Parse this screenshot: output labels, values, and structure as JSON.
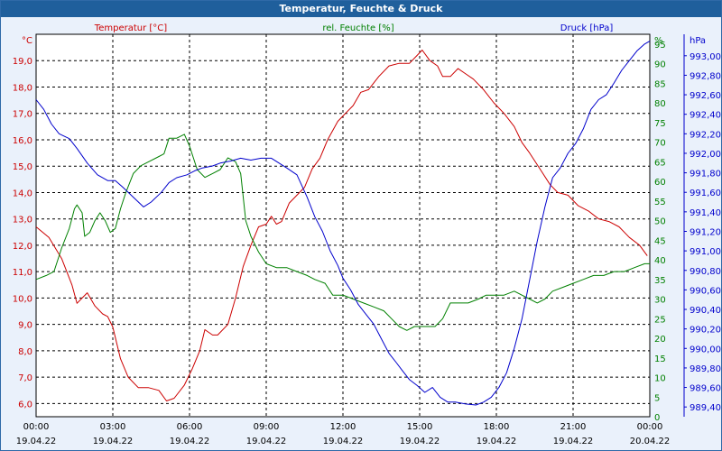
{
  "title": "Temperatur, Feuchte & Druck",
  "colors": {
    "temperature": "#cc0000",
    "humidity": "#008000",
    "pressure": "#0000cc",
    "axis_text": "#000000",
    "titlebar": "#1f5f9c",
    "plot_bg": "#ffffff"
  },
  "chart_data": {
    "type": "line",
    "title": "Temperatur, Feuchte & Druck",
    "grid": true,
    "x_ticks": [
      {
        "time": "00:00",
        "date": "19.04.22"
      },
      {
        "time": "03:00",
        "date": "19.04.22"
      },
      {
        "time": "06:00",
        "date": "19.04.22"
      },
      {
        "time": "09:00",
        "date": "19.04.22"
      },
      {
        "time": "12:00",
        "date": "19.04.22"
      },
      {
        "time": "15:00",
        "date": "19.04.22"
      },
      {
        "time": "18:00",
        "date": "19.04.22"
      },
      {
        "time": "21:00",
        "date": "19.04.22"
      },
      {
        "time": "00:00",
        "date": "20.04.22"
      }
    ],
    "x_range": [
      "19.04.22 00:00",
      "20.04.22 00:00"
    ],
    "axes": {
      "temperature": {
        "label": "Temperatur [°C]",
        "unit": "°C",
        "ylim": [
          5.5,
          20.0
        ],
        "ticks": [
          "6,0",
          "7,0",
          "8,0",
          "9,0",
          "10,0",
          "11,0",
          "12,0",
          "13,0",
          "14,0",
          "15,0",
          "16,0",
          "17,0",
          "18,0",
          "19,0"
        ],
        "tick_values": [
          6,
          7,
          8,
          9,
          10,
          11,
          12,
          13,
          14,
          15,
          16,
          17,
          18,
          19
        ]
      },
      "humidity": {
        "label": "rel. Feuchte [%]",
        "unit": "%",
        "ylim": [
          0,
          97.5
        ],
        "ticks": [
          "0",
          "5",
          "10",
          "15",
          "20",
          "25",
          "30",
          "35",
          "40",
          "45",
          "50",
          "55",
          "60",
          "65",
          "70",
          "75",
          "80",
          "85",
          "90",
          "95"
        ],
        "tick_values": [
          0,
          5,
          10,
          15,
          20,
          25,
          30,
          35,
          40,
          45,
          50,
          55,
          60,
          65,
          70,
          75,
          80,
          85,
          90,
          95
        ]
      },
      "pressure": {
        "label": "Druck [hPa]",
        "unit": "hPa",
        "ylim": [
          989.3,
          993.22
        ],
        "ticks": [
          "989,40",
          "989,60",
          "989,80",
          "990,00",
          "990,20",
          "990,40",
          "990,60",
          "990,80",
          "991,00",
          "991,20",
          "991,40",
          "991,60",
          "991,80",
          "992,00",
          "992,20",
          "992,40",
          "992,60",
          "992,80",
          "993,00"
        ],
        "tick_values": [
          989.4,
          989.6,
          989.8,
          990.0,
          990.2,
          990.4,
          990.6,
          990.8,
          991.0,
          991.2,
          991.4,
          991.6,
          991.8,
          992.0,
          992.2,
          992.4,
          992.6,
          992.8,
          993.0
        ]
      }
    },
    "series": [
      {
        "name": "Temperatur [°C]",
        "axis": "temperature",
        "color": "#cc0000",
        "data": [
          [
            0,
            12.7
          ],
          [
            0.5,
            12.3
          ],
          [
            1,
            11.5
          ],
          [
            1.4,
            10.5
          ],
          [
            1.6,
            9.8
          ],
          [
            1.8,
            10.0
          ],
          [
            2.0,
            10.2
          ],
          [
            2.3,
            9.7
          ],
          [
            2.6,
            9.4
          ],
          [
            2.8,
            9.3
          ],
          [
            3.0,
            8.9
          ],
          [
            3.3,
            7.7
          ],
          [
            3.6,
            7.0
          ],
          [
            4.0,
            6.6
          ],
          [
            4.4,
            6.6
          ],
          [
            4.8,
            6.5
          ],
          [
            5.1,
            6.1
          ],
          [
            5.4,
            6.2
          ],
          [
            5.8,
            6.7
          ],
          [
            6.1,
            7.3
          ],
          [
            6.4,
            8.0
          ],
          [
            6.6,
            8.8
          ],
          [
            6.9,
            8.6
          ],
          [
            7.1,
            8.6
          ],
          [
            7.5,
            9.0
          ],
          [
            7.8,
            10.0
          ],
          [
            8.1,
            11.2
          ],
          [
            8.4,
            12.0
          ],
          [
            8.7,
            12.7
          ],
          [
            9.0,
            12.8
          ],
          [
            9.2,
            13.1
          ],
          [
            9.4,
            12.8
          ],
          [
            9.6,
            12.9
          ],
          [
            9.9,
            13.6
          ],
          [
            10.2,
            13.9
          ],
          [
            10.5,
            14.2
          ],
          [
            10.8,
            14.9
          ],
          [
            11.1,
            15.3
          ],
          [
            11.4,
            16.0
          ],
          [
            11.8,
            16.7
          ],
          [
            12.1,
            17.0
          ],
          [
            12.4,
            17.3
          ],
          [
            12.7,
            17.8
          ],
          [
            13.0,
            17.9
          ],
          [
            13.4,
            18.4
          ],
          [
            13.8,
            18.8
          ],
          [
            14.2,
            18.9
          ],
          [
            14.6,
            18.9
          ],
          [
            14.9,
            19.2
          ],
          [
            15.1,
            19.4
          ],
          [
            15.4,
            19.0
          ],
          [
            15.7,
            18.8
          ],
          [
            15.9,
            18.4
          ],
          [
            16.2,
            18.4
          ],
          [
            16.5,
            18.7
          ],
          [
            16.8,
            18.5
          ],
          [
            17.1,
            18.3
          ],
          [
            17.5,
            17.9
          ],
          [
            17.9,
            17.4
          ],
          [
            18.3,
            17.0
          ],
          [
            18.7,
            16.5
          ],
          [
            19.0,
            15.9
          ],
          [
            19.3,
            15.5
          ],
          [
            19.7,
            14.9
          ],
          [
            20.1,
            14.3
          ],
          [
            20.4,
            14.0
          ],
          [
            20.8,
            13.9
          ],
          [
            21.2,
            13.5
          ],
          [
            21.6,
            13.3
          ],
          [
            22.0,
            13.0
          ],
          [
            22.4,
            12.9
          ],
          [
            22.8,
            12.7
          ],
          [
            23.2,
            12.3
          ],
          [
            23.6,
            12.0
          ],
          [
            23.9,
            11.6
          ]
        ]
      },
      {
        "name": "rel. Feuchte [%]",
        "axis": "humidity",
        "color": "#008000",
        "data": [
          [
            0,
            35
          ],
          [
            0.4,
            36
          ],
          [
            0.7,
            37
          ],
          [
            1.0,
            43
          ],
          [
            1.3,
            48
          ],
          [
            1.5,
            53
          ],
          [
            1.6,
            54
          ],
          [
            1.8,
            52
          ],
          [
            1.9,
            46
          ],
          [
            2.1,
            47
          ],
          [
            2.3,
            50
          ],
          [
            2.5,
            52
          ],
          [
            2.7,
            50
          ],
          [
            2.9,
            47
          ],
          [
            3.1,
            48
          ],
          [
            3.3,
            53
          ],
          [
            3.5,
            57
          ],
          [
            3.8,
            62
          ],
          [
            4.1,
            64
          ],
          [
            4.4,
            65
          ],
          [
            4.7,
            66
          ],
          [
            5.0,
            67
          ],
          [
            5.2,
            71
          ],
          [
            5.5,
            71
          ],
          [
            5.8,
            72
          ],
          [
            6.0,
            69
          ],
          [
            6.3,
            63
          ],
          [
            6.6,
            61
          ],
          [
            6.9,
            62
          ],
          [
            7.2,
            63
          ],
          [
            7.5,
            66
          ],
          [
            7.8,
            65
          ],
          [
            8.0,
            62
          ],
          [
            8.2,
            50
          ],
          [
            8.4,
            46
          ],
          [
            8.7,
            42
          ],
          [
            9.0,
            39
          ],
          [
            9.4,
            38
          ],
          [
            9.8,
            38
          ],
          [
            10.2,
            37
          ],
          [
            10.6,
            36
          ],
          [
            10.9,
            35
          ],
          [
            11.3,
            34
          ],
          [
            11.6,
            31
          ],
          [
            12.0,
            31
          ],
          [
            12.4,
            30
          ],
          [
            12.8,
            29
          ],
          [
            13.2,
            28
          ],
          [
            13.6,
            27
          ],
          [
            13.9,
            25
          ],
          [
            14.2,
            23
          ],
          [
            14.5,
            22
          ],
          [
            14.8,
            23
          ],
          [
            15.2,
            23
          ],
          [
            15.6,
            23
          ],
          [
            15.9,
            25
          ],
          [
            16.2,
            29
          ],
          [
            16.5,
            29
          ],
          [
            16.9,
            29
          ],
          [
            17.3,
            30
          ],
          [
            17.6,
            31
          ],
          [
            18.0,
            31
          ],
          [
            18.3,
            31
          ],
          [
            18.7,
            32
          ],
          [
            19.0,
            31
          ],
          [
            19.3,
            30
          ],
          [
            19.6,
            29
          ],
          [
            19.9,
            30
          ],
          [
            20.2,
            32
          ],
          [
            20.6,
            33
          ],
          [
            21.0,
            34
          ],
          [
            21.4,
            35
          ],
          [
            21.8,
            36
          ],
          [
            22.2,
            36
          ],
          [
            22.6,
            37
          ],
          [
            23.0,
            37
          ],
          [
            23.4,
            38
          ],
          [
            23.8,
            39
          ],
          [
            24.0,
            39
          ]
        ]
      },
      {
        "name": "Druck [hPa]",
        "axis": "pressure",
        "color": "#0000cc",
        "data": [
          [
            0,
            992.55
          ],
          [
            0.3,
            992.45
          ],
          [
            0.6,
            992.3
          ],
          [
            0.9,
            992.2
          ],
          [
            1.3,
            992.15
          ],
          [
            1.6,
            992.05
          ],
          [
            2.0,
            991.9
          ],
          [
            2.4,
            991.78
          ],
          [
            2.8,
            991.72
          ],
          [
            3.1,
            991.72
          ],
          [
            3.4,
            991.65
          ],
          [
            3.8,
            991.55
          ],
          [
            4.2,
            991.45
          ],
          [
            4.5,
            991.5
          ],
          [
            4.9,
            991.6
          ],
          [
            5.2,
            991.7
          ],
          [
            5.5,
            991.75
          ],
          [
            5.9,
            991.78
          ],
          [
            6.2,
            991.82
          ],
          [
            6.5,
            991.85
          ],
          [
            6.9,
            991.87
          ],
          [
            7.2,
            991.9
          ],
          [
            7.6,
            991.92
          ],
          [
            8.0,
            991.95
          ],
          [
            8.4,
            991.93
          ],
          [
            8.8,
            991.95
          ],
          [
            9.2,
            991.95
          ],
          [
            9.5,
            991.9
          ],
          [
            9.8,
            991.85
          ],
          [
            10.2,
            991.78
          ],
          [
            10.6,
            991.55
          ],
          [
            10.9,
            991.35
          ],
          [
            11.2,
            991.2
          ],
          [
            11.5,
            991.0
          ],
          [
            11.8,
            990.85
          ],
          [
            12.0,
            990.72
          ],
          [
            12.3,
            990.6
          ],
          [
            12.6,
            990.45
          ],
          [
            12.9,
            990.35
          ],
          [
            13.2,
            990.25
          ],
          [
            13.5,
            990.1
          ],
          [
            13.8,
            989.95
          ],
          [
            14.1,
            989.85
          ],
          [
            14.3,
            989.78
          ],
          [
            14.6,
            989.68
          ],
          [
            14.9,
            989.62
          ],
          [
            15.2,
            989.55
          ],
          [
            15.5,
            989.6
          ],
          [
            15.8,
            989.5
          ],
          [
            16.1,
            989.45
          ],
          [
            16.4,
            989.45
          ],
          [
            16.8,
            989.43
          ],
          [
            17.2,
            989.42
          ],
          [
            17.5,
            989.45
          ],
          [
            17.8,
            989.5
          ],
          [
            18.1,
            989.6
          ],
          [
            18.4,
            989.75
          ],
          [
            18.7,
            990.0
          ],
          [
            19.0,
            990.3
          ],
          [
            19.3,
            990.7
          ],
          [
            19.6,
            991.1
          ],
          [
            19.9,
            991.45
          ],
          [
            20.2,
            991.75
          ],
          [
            20.5,
            991.85
          ],
          [
            20.8,
            992.0
          ],
          [
            21.1,
            992.1
          ],
          [
            21.4,
            992.25
          ],
          [
            21.7,
            992.45
          ],
          [
            22.0,
            992.55
          ],
          [
            22.3,
            992.6
          ],
          [
            22.6,
            992.72
          ],
          [
            22.9,
            992.85
          ],
          [
            23.2,
            992.95
          ],
          [
            23.5,
            993.05
          ],
          [
            23.8,
            993.12
          ],
          [
            24.0,
            993.15
          ]
        ]
      }
    ]
  }
}
